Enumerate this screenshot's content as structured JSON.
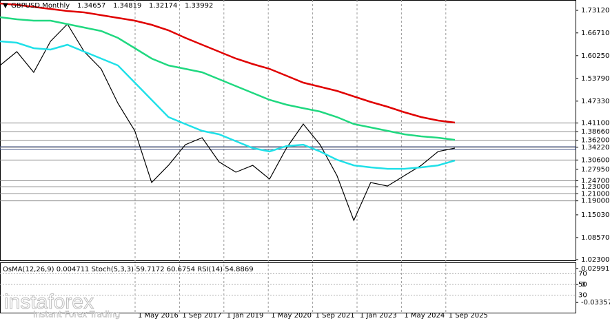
{
  "header": {
    "symbol": "GBPUSD,Monthly",
    "open": 1.34657,
    "high": 1.34819,
    "low": 1.32174,
    "close": 1.33992
  },
  "chart_data": [
    {
      "type": "line",
      "categories": [
        null,
        null,
        null,
        null,
        null,
        null,
        null,
        null,
        null,
        null,
        null,
        null,
        null,
        null,
        null,
        null,
        null,
        null,
        null,
        null,
        null,
        null,
        null,
        null,
        null,
        null,
        null,
        null
      ],
      "series": [
        {
          "name": "price",
          "color": "#000000",
          "values": [
            1.5747,
            1.6138,
            1.5551,
            1.6432,
            1.6921,
            1.6138,
            1.5649,
            1.4671,
            1.3888,
            1.242,
            1.2909,
            1.3496,
            1.3692,
            1.3007,
            1.2714,
            1.2909,
            1.2518,
            1.3399,
            1.4083,
            1.3496,
            1.2616,
            1.1344,
            1.242,
            1.2322,
            1.2616,
            1.2909,
            1.3301,
            1.3399
          ]
        },
        {
          "name": "ma-slow",
          "color": "#e00000",
          "values": [
            1.7508,
            1.7469,
            1.741,
            1.7352,
            1.7293,
            1.7254,
            1.7176,
            1.7097,
            1.7019,
            1.6901,
            1.6745,
            1.653,
            1.6334,
            1.6138,
            1.5943,
            1.5786,
            1.5649,
            1.5453,
            1.5258,
            1.514,
            1.5023,
            1.4866,
            1.471,
            1.4573,
            1.4416,
            1.4279,
            1.4181,
            1.4123
          ]
        },
        {
          "name": "ma-mid",
          "color": "#20d880",
          "values": [
            1.7117,
            1.7058,
            1.7019,
            1.7019,
            1.6921,
            1.6823,
            1.6725,
            1.653,
            1.6236,
            1.5943,
            1.5747,
            1.5649,
            1.5551,
            1.5356,
            1.516,
            1.4964,
            1.4768,
            1.4631,
            1.4533,
            1.4436,
            1.4279,
            1.4083,
            1.3986,
            1.3888,
            1.379,
            1.3731,
            1.3692,
            1.3633
          ]
        },
        {
          "name": "ma-fast",
          "color": "#20e0e8",
          "values": [
            1.6432,
            1.6393,
            1.6236,
            1.6197,
            1.6334,
            1.6138,
            1.5943,
            1.5747,
            1.5258,
            1.4768,
            1.4279,
            1.4083,
            1.3888,
            1.379,
            1.3594,
            1.3399,
            1.3301,
            1.3457,
            1.3496,
            1.3301,
            1.3066,
            1.2909,
            1.2851,
            1.2811,
            1.2811,
            1.2851,
            1.2909,
            1.3046
          ]
        }
      ],
      "ylim": [
        1.021,
        1.7606
      ],
      "yticks": [
        {
          "value": 1.7312,
          "label": "1.73120"
        },
        {
          "value": 1.6671,
          "label": "1.66710"
        },
        {
          "value": 1.6025,
          "label": "1.60250"
        },
        {
          "value": 1.5379,
          "label": "1.53790"
        },
        {
          "value": 1.4733,
          "label": "1.47330"
        },
        {
          "value": 1.411,
          "label": "1.41100"
        },
        {
          "value": 1.3866,
          "label": "1.38660"
        },
        {
          "value": 1.362,
          "label": "1.36200"
        },
        {
          "value": 1.3422,
          "label": "1.34220"
        },
        {
          "value": 1.306,
          "label": "1.30600"
        },
        {
          "value": 1.2795,
          "label": "1.27950"
        },
        {
          "value": 1.247,
          "label": "1.24700"
        },
        {
          "value": 1.23,
          "label": "1.23000"
        },
        {
          "value": 1.21,
          "label": "1.21000"
        },
        {
          "value": 1.19,
          "label": "1.19000"
        },
        {
          "value": 1.1503,
          "label": "1.15030"
        },
        {
          "value": 1.0857,
          "label": "1.08570"
        },
        {
          "value": 1.023,
          "label": "1.02300"
        }
      ],
      "levels": [
        1.411,
        1.3866,
        1.362,
        1.3422,
        1.306,
        1.247,
        1.23,
        1.21,
        1.19
      ],
      "xtick_labels": [
        "1 May 2016",
        "1 Sep 2017",
        "1 Jan 2019",
        "1 May 2020",
        "1 Sep 2021",
        "1 Jan 2023",
        "1 May 2024",
        "1 Sep 2025"
      ]
    },
    {
      "type": "oscillator",
      "title": "OsMA(12,26,9) 0.004711  Stoch(5,3,3) 59.7172 60.6754  RSI(14) 54.8869",
      "ylim": [
        -0.0539,
        0.04
      ],
      "yticks": [
        0.0299161,
        0,
        -0.033574
      ],
      "stoch_ylim": [
        0,
        100
      ],
      "stoch_levels": [
        70,
        50,
        30
      ]
    }
  ],
  "watermark": {
    "brand": "instaforex",
    "slogan": "Instant Forex Trading"
  }
}
